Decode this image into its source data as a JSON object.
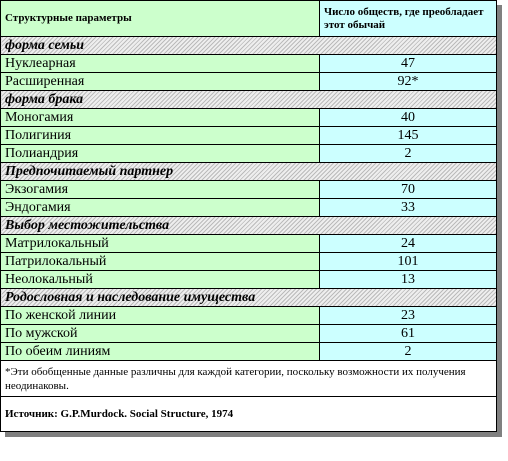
{
  "header": {
    "col1": "Структурные параметры",
    "col2": "Число обществ, где преобладает этот обычай"
  },
  "sections": [
    {
      "title": "форма семьи",
      "rows": [
        [
          "Нуклеарная",
          47
        ],
        [
          "Расширенная",
          "92*"
        ]
      ]
    },
    {
      "title": "форма брака",
      "rows": [
        [
          "Моногамия",
          40
        ],
        [
          "Полигиния",
          145
        ],
        [
          "Полиандрия",
          2
        ]
      ]
    },
    {
      "title": "Предпочитаемый партнер",
      "rows": [
        [
          "Экзогамия",
          70
        ],
        [
          "Эндогамия",
          33
        ]
      ]
    },
    {
      "title": "Выбор местожительства",
      "rows": [
        [
          "Матрилокальный",
          24
        ],
        [
          "Патрилокальный",
          101
        ],
        [
          "Неолокальный",
          13
        ]
      ]
    },
    {
      "title": "Родословная и наследование имущества",
      "rows": [
        [
          "По женской линии",
          23
        ],
        [
          "По мужской",
          61
        ],
        [
          "По обеим линиям",
          2
        ]
      ]
    }
  ],
  "footnote": "*Эти обобщенные данные различны для каждой категории, поскольку возможности их получения неодинаковы.",
  "source": "Источник: G.P.Murdock. Social Structure, 1974"
}
